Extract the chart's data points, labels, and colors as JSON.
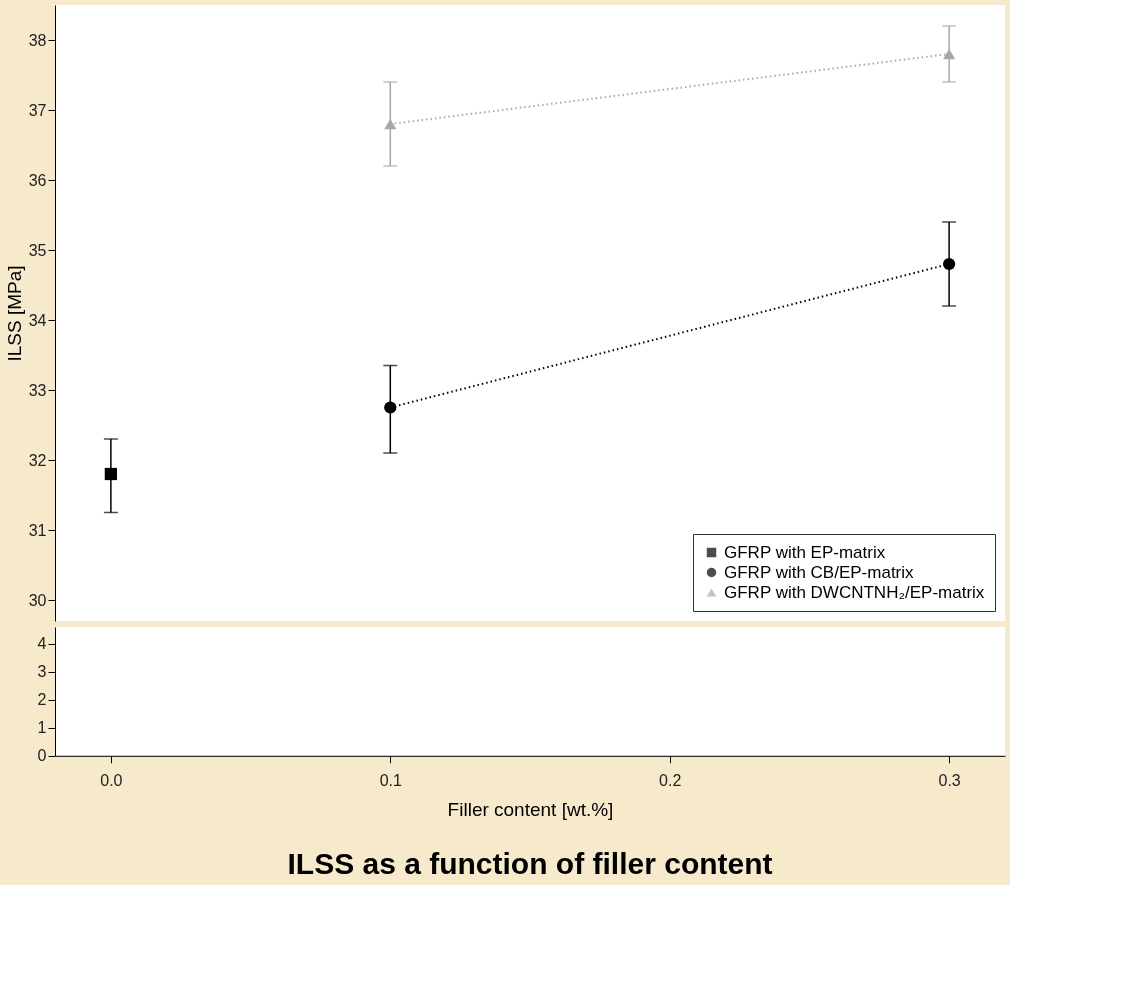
{
  "chart_data": [
    {
      "type": "line",
      "ylabel": "ILSS [MPa]",
      "xlim": [
        -0.02,
        0.32
      ],
      "ylim": [
        29.7,
        38.5
      ],
      "yticks": [
        30,
        31,
        32,
        33,
        34,
        35,
        36,
        37,
        38
      ],
      "tick_labels": "y",
      "grid": false,
      "legend": "bottom right",
      "line_style": "dotted",
      "series": [
        {
          "name": "GFRP with EP-matrix",
          "color": "#000000",
          "marker": "square",
          "x": [
            0.0
          ],
          "values": [
            31.8
          ],
          "errors": [
            [
              31.25,
              32.3
            ]
          ]
        },
        {
          "name": "GFRP with CB/EP-matrix",
          "color": "#000000",
          "marker": "circle",
          "x": [
            0.1,
            0.3
          ],
          "values": [
            32.75,
            34.8
          ],
          "errors": [
            [
              32.1,
              33.35
            ],
            [
              34.2,
              35.4
            ]
          ]
        },
        {
          "name": "GFRP with DWCNTNH₂/EP-matrix",
          "color": "#a8a8a8",
          "marker": "triangle",
          "x": [
            0.1,
            0.3
          ],
          "values": [
            36.8,
            37.8
          ],
          "errors": [
            [
              36.2,
              37.4
            ],
            [
              37.4,
              38.2
            ]
          ]
        }
      ]
    },
    {
      "type": "line",
      "title": "ILSS as a function of filler content",
      "xlabel": "Filler content [wt.%]",
      "xlim": [
        -0.02,
        0.32
      ],
      "xticks": [
        {
          "value": 0,
          "label": "0.0"
        },
        {
          "value": 0.1,
          "label": "0.1"
        },
        {
          "value": 0.2,
          "label": "0.2"
        },
        {
          "value": 0.3,
          "label": "0.3"
        }
      ],
      "ylim": [
        0,
        4.6
      ],
      "yticks": [
        0,
        1,
        2,
        3,
        4
      ],
      "grid": false
    }
  ]
}
